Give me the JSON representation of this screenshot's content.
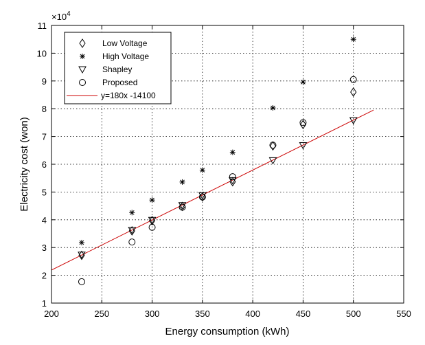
{
  "chart_data": {
    "type": "scatter",
    "xlabel": "Energy consumption (kWh)",
    "ylabel": "Electricity cost (won)",
    "exponent_label": "×10",
    "exponent_power": "4",
    "xlim": [
      200,
      550
    ],
    "ylim": [
      1,
      11
    ],
    "xticks": [
      "200",
      "250",
      "300",
      "350",
      "400",
      "450",
      "500",
      "550"
    ],
    "yticks": [
      "1",
      "2",
      "3",
      "4",
      "5",
      "6",
      "7",
      "8",
      "9",
      "10",
      "11"
    ],
    "grid": true,
    "legend_position": "top-left",
    "series": [
      {
        "name": "Low Voltage",
        "marker": "diamond",
        "points": [
          [
            230,
            2.72
          ],
          [
            280,
            3.6
          ],
          [
            300,
            3.97
          ],
          [
            330,
            4.48
          ],
          [
            350,
            4.83
          ],
          [
            380,
            5.37
          ],
          [
            420,
            6.66
          ],
          [
            450,
            7.43
          ],
          [
            500,
            8.6
          ]
        ]
      },
      {
        "name": "High Voltage",
        "marker": "asterisk",
        "points": [
          [
            230,
            3.18
          ],
          [
            280,
            4.26
          ],
          [
            300,
            4.71
          ],
          [
            330,
            5.36
          ],
          [
            350,
            5.79
          ],
          [
            380,
            6.43
          ],
          [
            420,
            8.03
          ],
          [
            450,
            8.96
          ],
          [
            500,
            10.5
          ]
        ]
      },
      {
        "name": "Shapley",
        "marker": "triangle-down",
        "points": [
          [
            230,
            2.74
          ],
          [
            280,
            3.63
          ],
          [
            300,
            3.99
          ],
          [
            330,
            4.52
          ],
          [
            350,
            4.88
          ],
          [
            380,
            5.42
          ],
          [
            420,
            6.14
          ],
          [
            450,
            6.68
          ],
          [
            500,
            7.58
          ]
        ]
      },
      {
        "name": "Proposed",
        "marker": "circle",
        "points": [
          [
            230,
            1.77
          ],
          [
            280,
            3.2
          ],
          [
            300,
            3.73
          ],
          [
            330,
            4.45
          ],
          [
            350,
            4.82
          ],
          [
            380,
            5.55
          ],
          [
            420,
            6.69
          ],
          [
            450,
            7.5
          ],
          [
            500,
            9.05
          ]
        ]
      }
    ],
    "fit_line": {
      "name": "y=180x -14100",
      "slope": 180,
      "intercept": -14100,
      "x_range": [
        200,
        520
      ],
      "scale": 10000,
      "color": "#cc0000"
    }
  }
}
